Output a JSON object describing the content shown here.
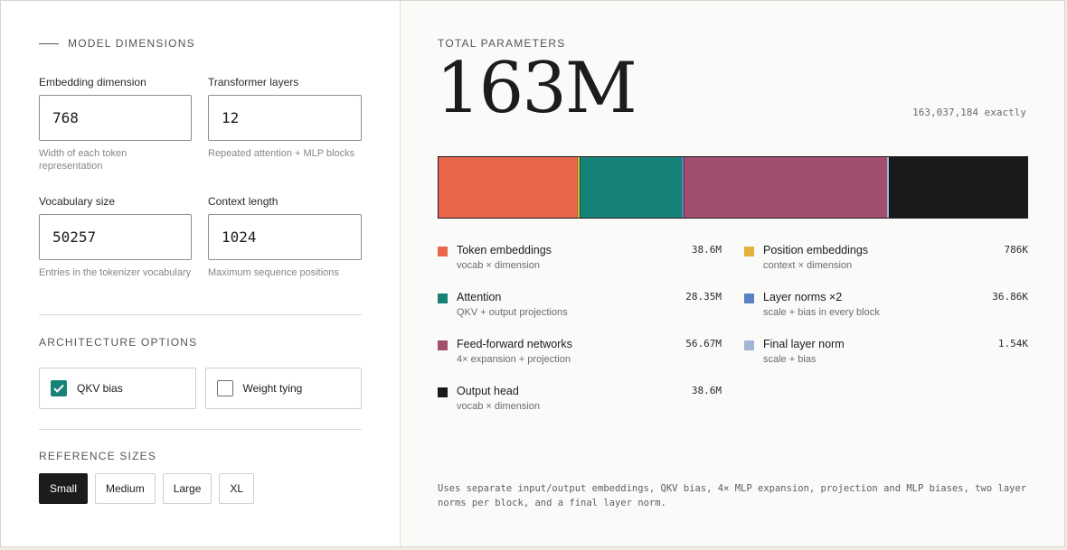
{
  "model_dimensions": {
    "heading": "MODEL DIMENSIONS",
    "fields": [
      {
        "label": "Embedding dimension",
        "value": "768",
        "help": "Width of each token representation"
      },
      {
        "label": "Transformer layers",
        "value": "12",
        "help": "Repeated attention + MLP blocks"
      },
      {
        "label": "Vocabulary size",
        "value": "50257",
        "help": "Entries in the tokenizer vocabulary"
      },
      {
        "label": "Context length",
        "value": "1024",
        "help": "Maximum sequence positions"
      }
    ]
  },
  "architecture": {
    "heading": "ARCHITECTURE OPTIONS",
    "options": [
      {
        "label": "QKV bias",
        "checked": true
      },
      {
        "label": "Weight tying",
        "checked": false
      }
    ]
  },
  "reference_sizes": {
    "heading": "REFERENCE SIZES",
    "buttons": [
      "Small",
      "Medium",
      "Large",
      "XL"
    ],
    "selected": "Small"
  },
  "summary": {
    "total_label": "TOTAL PARAMETERS",
    "total_value": "163M",
    "exact": "163,037,184 exactly"
  },
  "breakdown": [
    {
      "name": "Token embeddings",
      "sub": "vocab × dimension",
      "value": "38.6M",
      "params": 38597376,
      "color": "#e8664a"
    },
    {
      "name": "Position embeddings",
      "sub": "context × dimension",
      "value": "786K",
      "params": 786432,
      "color": "#e3b23c"
    },
    {
      "name": "Attention",
      "sub": "QKV + output projections",
      "value": "28.35M",
      "params": 28348416,
      "color": "#178378"
    },
    {
      "name": "Layer norms ×2",
      "sub": "scale + bias in every block",
      "value": "36.86K",
      "params": 36864,
      "color": "#5b82c4"
    },
    {
      "name": "Feed-forward networks",
      "sub": "4× expansion + projection",
      "value": "56.67M",
      "params": 56669184,
      "color": "#a24e6e"
    },
    {
      "name": "Final layer norm",
      "sub": "scale + bias",
      "value": "1.54K",
      "params": 1536,
      "color": "#a3b5d6"
    },
    {
      "name": "Output head",
      "sub": "vocab × dimension",
      "value": "38.6M",
      "params": 38597376,
      "color": "#1a1a1c"
    }
  ],
  "bar_order": [
    "Token embeddings",
    "Position embeddings",
    "Attention",
    "Layer norms ×2",
    "Feed-forward networks",
    "Final layer norm",
    "Output head"
  ],
  "footnote": "Uses separate input/output embeddings, QKV bias, 4× MLP expansion, projection and MLP biases, two layer norms per block, and a final layer norm."
}
